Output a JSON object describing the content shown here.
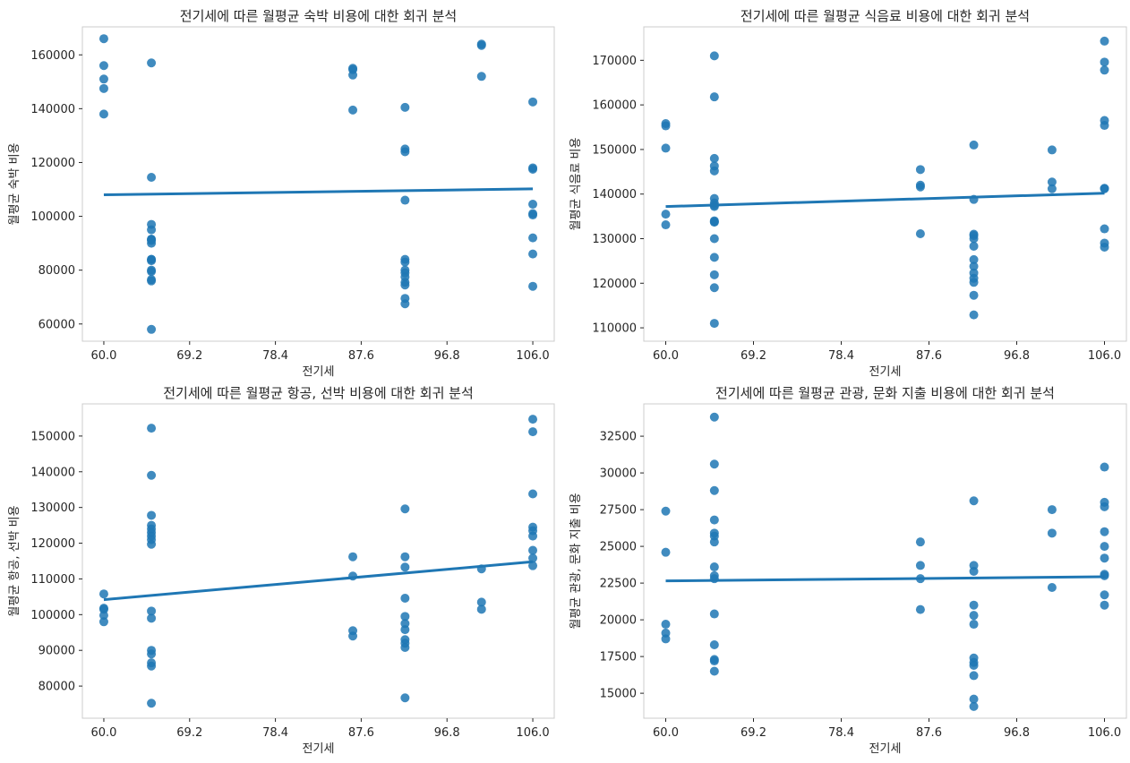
{
  "chart_data": [
    {
      "type": "scatter",
      "title": "전기세에 따른 월평균 숙박 비용에 대한 회귀 분석",
      "xlabel": "전기세",
      "ylabel": "월평균 숙박 비용",
      "xlim": [
        57.7,
        108.3
      ],
      "ylim": [
        53600,
        170400
      ],
      "xticks": [
        60.0,
        69.2,
        78.4,
        87.6,
        96.8,
        106.0
      ],
      "xtick_labels": [
        "60.0",
        "69.2",
        "78.4",
        "87.6",
        "96.8",
        "106.0"
      ],
      "yticks": [
        60000,
        80000,
        100000,
        120000,
        140000,
        160000
      ],
      "ytick_labels": [
        "60000",
        "80000",
        "100000",
        "120000",
        "140000",
        "160000"
      ],
      "grid": false,
      "point_color": "#1f77b4",
      "line_color": "#1f77b4",
      "regression_line": {
        "x": [
          60.0,
          106.0
        ],
        "y": [
          108000,
          110200
        ]
      },
      "x": [
        60,
        60,
        60,
        60,
        60,
        65.1,
        65.1,
        65.1,
        65.1,
        65.1,
        65.1,
        65.1,
        65.1,
        65.1,
        65.1,
        65.1,
        65.1,
        65.1,
        65.1,
        65.1,
        65.1,
        86.7,
        86.7,
        86.7,
        86.7,
        92.3,
        92.3,
        92.3,
        92.3,
        92.3,
        92.3,
        92.3,
        92.3,
        92.3,
        92.3,
        92.3,
        92.3,
        92.3,
        100.5,
        100.5,
        100.5,
        106,
        106,
        106,
        106,
        106,
        106,
        106,
        106,
        106
      ],
      "y": [
        166000,
        156000,
        151000,
        147500,
        138000,
        157000,
        114500,
        97000,
        95000,
        91500,
        91000,
        90000,
        84000,
        83500,
        80000,
        79500,
        76500,
        76000,
        58000,
        84000,
        91500,
        155000,
        154500,
        152500,
        139500,
        140500,
        125000,
        124000,
        106000,
        84000,
        83000,
        80000,
        79000,
        77500,
        75500,
        74500,
        69500,
        67500,
        164000,
        163500,
        152000,
        142500,
        118000,
        117500,
        104500,
        101000,
        100500,
        92000,
        86000,
        74000
      ]
    },
    {
      "type": "scatter",
      "title": "전기세에 따른 월평균 식음료 비용에 대한 회귀 분석",
      "xlabel": "전기세",
      "ylabel": "월평균 식음료 비용",
      "xlim": [
        57.7,
        108.3
      ],
      "ylim": [
        107000,
        177500
      ],
      "xticks": [
        60.0,
        69.2,
        78.4,
        87.6,
        96.8,
        106.0
      ],
      "xtick_labels": [
        "60.0",
        "69.2",
        "78.4",
        "87.6",
        "96.8",
        "106.0"
      ],
      "yticks": [
        110000,
        120000,
        130000,
        140000,
        150000,
        160000,
        170000
      ],
      "ytick_labels": [
        "110000",
        "120000",
        "130000",
        "140000",
        "150000",
        "160000",
        "170000"
      ],
      "grid": false,
      "point_color": "#1f77b4",
      "line_color": "#1f77b4",
      "regression_line": {
        "x": [
          60.0,
          106.0
        ],
        "y": [
          137200,
          140200
        ]
      },
      "x": [
        60,
        60,
        60,
        60,
        60,
        65.1,
        65.1,
        65.1,
        65.1,
        65.1,
        65.1,
        65.1,
        65.1,
        65.1,
        65.1,
        65.1,
        65.1,
        65.1,
        65.1,
        65.1,
        65.1,
        65.1,
        86.7,
        86.7,
        86.7,
        86.7,
        92.3,
        92.3,
        92.3,
        92.3,
        92.3,
        92.3,
        92.3,
        92.3,
        92.3,
        92.3,
        92.3,
        92.3,
        92.3,
        100.5,
        100.5,
        100.5,
        106,
        106,
        106,
        106,
        106,
        106,
        106,
        106,
        106,
        106
      ],
      "y": [
        155800,
        155300,
        150300,
        135500,
        133100,
        171000,
        161800,
        148000,
        146300,
        145200,
        139000,
        138000,
        137200,
        134000,
        133700,
        130000,
        125800,
        121900,
        119000,
        111000,
        137500,
        133800,
        145500,
        142000,
        141600,
        131100,
        151000,
        138800,
        131000,
        130000,
        128300,
        125300,
        123800,
        122300,
        121100,
        120200,
        117300,
        112900,
        130700,
        149900,
        142700,
        141200,
        174300,
        169600,
        167800,
        156500,
        155400,
        141200,
        132200,
        129000,
        128100,
        141300
      ]
    },
    {
      "type": "scatter",
      "title": "전기세에 따른 월평균 항공, 선박 비용에 대한 회귀 분석",
      "xlabel": "전기세",
      "ylabel": "월평균 항공, 선박 비용",
      "xlim": [
        57.7,
        108.3
      ],
      "ylim": [
        71000,
        159000
      ],
      "xticks": [
        60.0,
        69.2,
        78.4,
        87.6,
        96.8,
        106.0
      ],
      "xtick_labels": [
        "60.0",
        "69.2",
        "78.4",
        "87.6",
        "96.8",
        "106.0"
      ],
      "yticks": [
        80000,
        90000,
        100000,
        110000,
        120000,
        130000,
        140000,
        150000
      ],
      "ytick_labels": [
        "80000",
        "90000",
        "100000",
        "110000",
        "120000",
        "130000",
        "140000",
        "150000"
      ],
      "grid": false,
      "point_color": "#1f77b4",
      "line_color": "#1f77b4",
      "regression_line": {
        "x": [
          60.0,
          106.0
        ],
        "y": [
          104200,
          114800
        ]
      },
      "x": [
        60,
        60,
        60,
        60,
        60,
        65.1,
        65.1,
        65.1,
        65.1,
        65.1,
        65.1,
        65.1,
        65.1,
        65.1,
        65.1,
        65.1,
        65.1,
        65.1,
        65.1,
        65.1,
        65.1,
        86.7,
        86.7,
        86.7,
        86.7,
        92.3,
        92.3,
        92.3,
        92.3,
        92.3,
        92.3,
        92.3,
        92.3,
        92.3,
        92.3,
        92.3,
        100.5,
        100.5,
        100.5,
        106,
        106,
        106,
        106,
        106,
        106,
        106,
        106,
        106
      ],
      "y": [
        105800,
        101800,
        101500,
        99800,
        98000,
        152200,
        139000,
        127800,
        125000,
        123000,
        122000,
        121000,
        119700,
        101000,
        99000,
        90000,
        89000,
        86500,
        85600,
        75200,
        124000,
        116200,
        110800,
        95500,
        94000,
        129600,
        116200,
        113300,
        104600,
        99500,
        97500,
        95800,
        93000,
        92000,
        90800,
        76700,
        112800,
        103500,
        101500,
        154700,
        151200,
        133800,
        124500,
        123500,
        122000,
        118000,
        115800,
        113700
      ]
    },
    {
      "type": "scatter",
      "title": "전기세에 따른 월평균 관광, 문화 지출 비용에 대한 회귀 분석",
      "xlabel": "전기세",
      "ylabel": "월평균 관광, 문화 지출 비용",
      "xlim": [
        57.7,
        108.3
      ],
      "ylim": [
        13300,
        34700
      ],
      "xticks": [
        60.0,
        69.2,
        78.4,
        87.6,
        96.8,
        106.0
      ],
      "xtick_labels": [
        "60.0",
        "69.2",
        "78.4",
        "87.6",
        "96.8",
        "106.0"
      ],
      "yticks": [
        15000,
        17500,
        20000,
        22500,
        25000,
        27500,
        30000,
        32500
      ],
      "ytick_labels": [
        "15000",
        "17500",
        "20000",
        "22500",
        "25000",
        "27500",
        "30000",
        "32500"
      ],
      "grid": false,
      "point_color": "#1f77b4",
      "line_color": "#1f77b4",
      "regression_line": {
        "x": [
          60.0,
          106.0
        ],
        "y": [
          22650,
          22930
        ]
      },
      "x": [
        60,
        60,
        60,
        60,
        60,
        65.1,
        65.1,
        65.1,
        65.1,
        65.1,
        65.1,
        65.1,
        65.1,
        65.1,
        65.1,
        65.1,
        65.1,
        65.1,
        65.1,
        65.1,
        86.7,
        86.7,
        86.7,
        86.7,
        92.3,
        92.3,
        92.3,
        92.3,
        92.3,
        92.3,
        92.3,
        92.3,
        92.3,
        92.3,
        92.3,
        92.3,
        100.5,
        100.5,
        100.5,
        106,
        106,
        106,
        106,
        106,
        106,
        106,
        106,
        106,
        106
      ],
      "y": [
        27400,
        24600,
        19700,
        19100,
        18700,
        33800,
        30600,
        28800,
        26800,
        25900,
        25700,
        25300,
        23600,
        23000,
        22800,
        20400,
        18300,
        17300,
        17200,
        16500,
        25300,
        23700,
        22800,
        20700,
        28100,
        23700,
        23300,
        21000,
        20300,
        19700,
        17400,
        17100,
        16900,
        16200,
        14600,
        14100,
        27500,
        25900,
        22200,
        30400,
        28000,
        27700,
        26000,
        25000,
        24200,
        23100,
        21700,
        21000,
        23000
      ]
    }
  ]
}
